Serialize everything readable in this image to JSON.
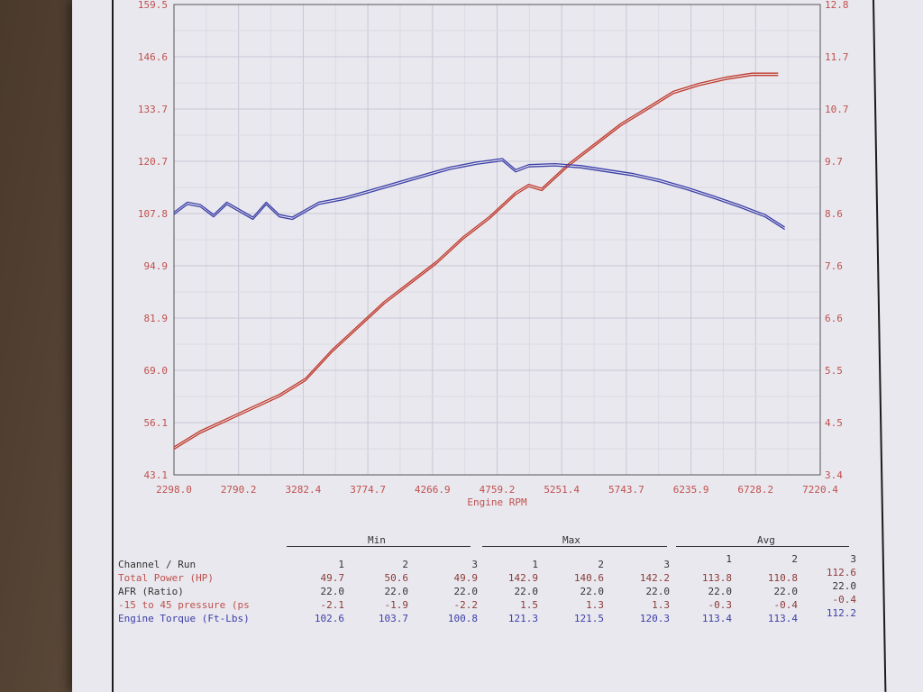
{
  "chart_data": {
    "type": "line",
    "xlabel": "Engine RPM",
    "x_ticks": [
      "2298.0",
      "2790.2",
      "3282.4",
      "3774.7",
      "4266.9",
      "4759.2",
      "5251.4",
      "5743.7",
      "6235.9",
      "6728.2",
      "7220.4"
    ],
    "left_ticks": [
      "43.1",
      "56.1",
      "69.0",
      "81.9",
      "94.9",
      "107.8",
      "120.7",
      "133.7",
      "146.6",
      "159.5"
    ],
    "right_ticks": [
      "3.4",
      "4.5",
      "5.5",
      "6.6",
      "7.6",
      "8.6",
      "9.7",
      "10.7",
      "11.7",
      "12.8"
    ],
    "xlim": [
      2298.0,
      7220.4
    ],
    "ylim_left": [
      43.1,
      159.5
    ],
    "ylim_right": [
      3.4,
      12.8
    ],
    "grid": true,
    "series": [
      {
        "name": "Total Power (HP)",
        "color": "#c0392b",
        "axis": "left",
        "x": [
          2298,
          2500,
          2700,
          2900,
          3100,
          3300,
          3500,
          3700,
          3900,
          4100,
          4300,
          4500,
          4700,
          4900,
          5000,
          5100,
          5300,
          5500,
          5700,
          5900,
          6100,
          6300,
          6500,
          6700,
          6900
        ],
        "y": [
          50,
          54,
          57,
          60,
          63,
          67,
          74,
          80,
          86,
          91,
          96,
          102,
          107,
          113,
          115,
          114,
          120,
          125,
          130,
          134,
          138,
          140,
          141.5,
          142.5,
          142.5
        ]
      },
      {
        "name": "Engine Torque (Ft-Lbs)",
        "color": "#3b3ea8",
        "axis": "right",
        "x": [
          2298,
          2400,
          2500,
          2600,
          2700,
          2800,
          2900,
          3000,
          3100,
          3200,
          3300,
          3400,
          3600,
          3800,
          4000,
          4200,
          4400,
          4600,
          4800,
          4900,
          5000,
          5200,
          5400,
          5600,
          5800,
          6000,
          6200,
          6400,
          6600,
          6800,
          6950
        ],
        "y": [
          8.65,
          8.85,
          8.8,
          8.6,
          8.85,
          8.7,
          8.55,
          8.85,
          8.6,
          8.55,
          8.7,
          8.85,
          8.95,
          9.1,
          9.25,
          9.4,
          9.55,
          9.65,
          9.72,
          9.5,
          9.6,
          9.62,
          9.58,
          9.5,
          9.42,
          9.3,
          9.15,
          8.98,
          8.8,
          8.6,
          8.35
        ]
      }
    ]
  },
  "stats": {
    "groups": [
      "Min",
      "Max",
      "Avg"
    ],
    "header_label": "Channel / Run",
    "run_numbers": [
      "1",
      "2",
      "3"
    ],
    "rows": [
      {
        "label": "Total Power (HP)",
        "color": "#c0504d",
        "values": [
          "49.7",
          "50.6",
          "49.9",
          "142.9",
          "140.6",
          "142.2",
          "113.8",
          "110.8",
          "112.6"
        ]
      },
      {
        "label": "AFR (Ratio)",
        "color": "#333333",
        "values": [
          "22.0",
          "22.0",
          "22.0",
          "22.0",
          "22.0",
          "22.0",
          "22.0",
          "22.0",
          "22.0"
        ]
      },
      {
        "label": "-15 to 45 pressure (ps",
        "color": "#c0504d",
        "values": [
          "-2.1",
          "-1.9",
          "-2.2",
          "1.5",
          "1.3",
          "1.3",
          "-0.3",
          "-0.4",
          "-0.4"
        ]
      },
      {
        "label": "Engine Torque (Ft-Lbs)",
        "color": "#3b3ea8",
        "values": [
          "102.6",
          "103.7",
          "100.8",
          "121.3",
          "121.5",
          "120.3",
          "113.4",
          "113.4",
          "112.2"
        ]
      }
    ]
  }
}
